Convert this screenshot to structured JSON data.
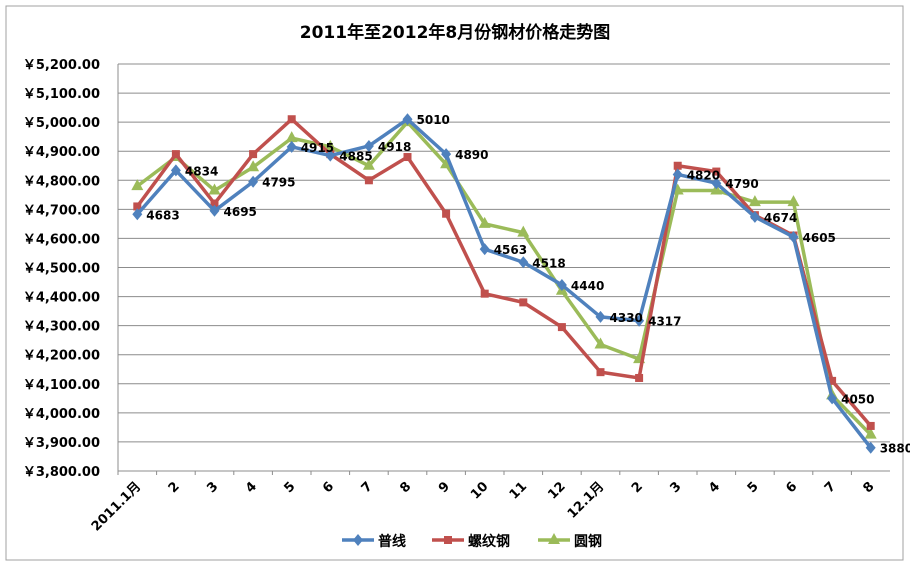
{
  "chart_data": {
    "type": "line",
    "title": "2011年至2012年8月份钢材价格走势图",
    "categories": [
      "2011.1月",
      "2",
      "3",
      "4",
      "5",
      "6",
      "7",
      "8",
      "9",
      "10",
      "11",
      "12",
      "12.1月",
      "2",
      "3",
      "4",
      "5",
      "6",
      "7",
      "8"
    ],
    "ylim": [
      3800,
      5200
    ],
    "ytick_labels": [
      "￥5,200.00",
      "￥5,100.00",
      "￥5,000.00",
      "￥4,900.00",
      "￥4,800.00",
      "￥4,700.00",
      "￥4,600.00",
      "￥4,500.00",
      "￥4,400.00",
      "￥4,300.00",
      "￥4,200.00",
      "￥4,100.00",
      "￥4,000.00",
      "￥3,900.00",
      "￥3,800.00"
    ],
    "ytick_values": [
      5200,
      5100,
      5000,
      4900,
      4800,
      4700,
      4600,
      4500,
      4400,
      4300,
      4200,
      4100,
      4000,
      3900,
      3800
    ],
    "grid": true,
    "legend_position": "bottom",
    "series": [
      {
        "name": "普线",
        "color": "#4F81BD",
        "marker": "diamond",
        "values": [
          4683,
          4834,
          4695,
          4795,
          4915,
          4885,
          4918,
          5010,
          4890,
          4563,
          4518,
          4440,
          4330,
          4317,
          4820,
          4790,
          4674,
          4605,
          4050,
          3880
        ]
      },
      {
        "name": "螺纹钢",
        "color": "#C0504D",
        "marker": "square",
        "values": [
          4710,
          4890,
          4720,
          4890,
          5010,
          4890,
          4800,
          4880,
          4685,
          4410,
          4380,
          4295,
          4140,
          4120,
          4850,
          4830,
          4680,
          4610,
          4110,
          3955
        ]
      },
      {
        "name": "圆钢",
        "color": "#9BBB59",
        "marker": "triangle",
        "values": [
          4780,
          4880,
          4765,
          4845,
          4945,
          4915,
          4850,
          5000,
          4855,
          4650,
          4620,
          4420,
          4235,
          4185,
          4765,
          4765,
          4725,
          4725,
          4060,
          3925
        ]
      }
    ],
    "data_labels": {
      "series": "普线",
      "values": [
        "4683",
        "4834",
        "4695",
        "4795",
        "4915",
        "4885",
        "4918",
        "5010",
        "4890",
        "4563",
        "4518",
        "4440",
        "4330",
        "4317",
        "4820",
        "4790",
        "4674",
        "4605",
        "4050",
        "3880"
      ]
    }
  }
}
